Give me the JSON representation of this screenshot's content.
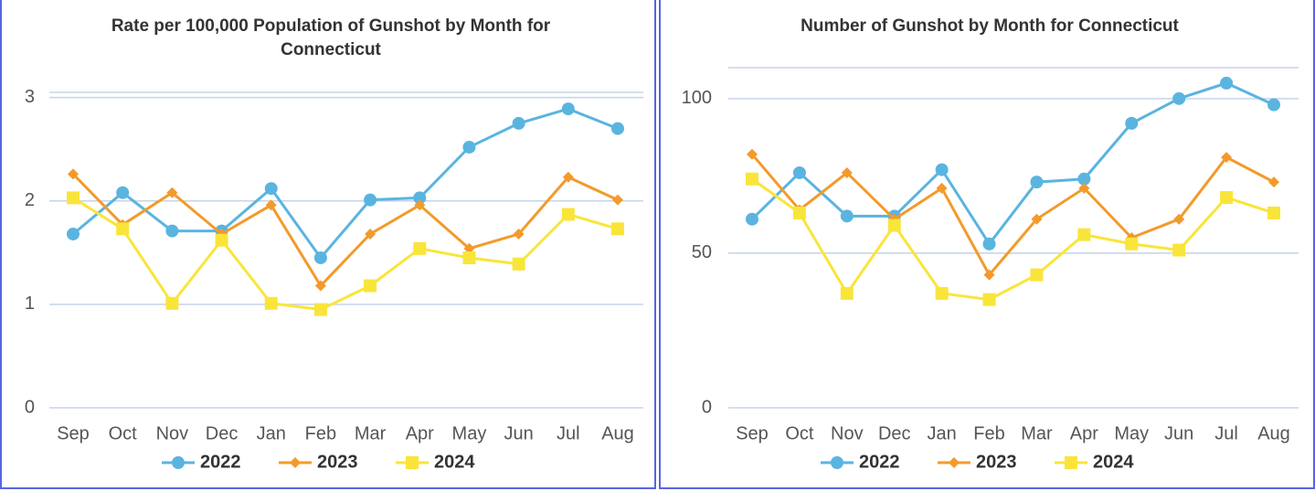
{
  "chart_data": [
    {
      "type": "line",
      "title": "Rate per 100,000 Population of Gunshot by Month for Connecticut",
      "categories": [
        "Sep",
        "Oct",
        "Nov",
        "Dec",
        "Jan",
        "Feb",
        "Mar",
        "Apr",
        "May",
        "Jun",
        "Jul",
        "Aug"
      ],
      "series": [
        {
          "name": "2022",
          "color": "#5ab4e0",
          "marker": "circle",
          "values": [
            1.68,
            2.08,
            1.71,
            1.71,
            2.12,
            1.45,
            2.01,
            2.03,
            2.52,
            2.75,
            2.89,
            2.7
          ]
        },
        {
          "name": "2023",
          "color": "#f39a2b",
          "marker": "diamond",
          "values": [
            2.26,
            1.77,
            2.08,
            1.68,
            1.96,
            1.18,
            1.68,
            1.96,
            1.54,
            1.68,
            2.23,
            2.01
          ]
        },
        {
          "name": "2024",
          "color": "#f9e53a",
          "marker": "square",
          "values": [
            2.03,
            1.73,
            1.01,
            1.62,
            1.01,
            0.95,
            1.18,
            1.54,
            1.45,
            1.39,
            1.87,
            1.73
          ]
        }
      ],
      "ylim": [
        0,
        3.05
      ],
      "yticks": [
        0,
        1,
        2,
        3
      ],
      "grid": true,
      "legend": "bottom"
    },
    {
      "type": "line",
      "title": "Number of Gunshot by Month for Connecticut",
      "categories": [
        "Sep",
        "Oct",
        "Nov",
        "Dec",
        "Jan",
        "Feb",
        "Mar",
        "Apr",
        "May",
        "Jun",
        "Jul",
        "Aug"
      ],
      "series": [
        {
          "name": "2022",
          "color": "#5ab4e0",
          "marker": "circle",
          "values": [
            61,
            76,
            62,
            62,
            77,
            53,
            73,
            74,
            92,
            100,
            105,
            98
          ]
        },
        {
          "name": "2023",
          "color": "#f39a2b",
          "marker": "diamond",
          "values": [
            82,
            64,
            76,
            61,
            71,
            43,
            61,
            71,
            55,
            61,
            81,
            73
          ]
        },
        {
          "name": "2024",
          "color": "#f9e53a",
          "marker": "square",
          "values": [
            74,
            63,
            37,
            59,
            37,
            35,
            43,
            56,
            53,
            51,
            68,
            63
          ]
        }
      ],
      "ylim": [
        0,
        110
      ],
      "yticks": [
        0,
        50,
        100
      ],
      "grid": true,
      "legend": "bottom"
    }
  ]
}
